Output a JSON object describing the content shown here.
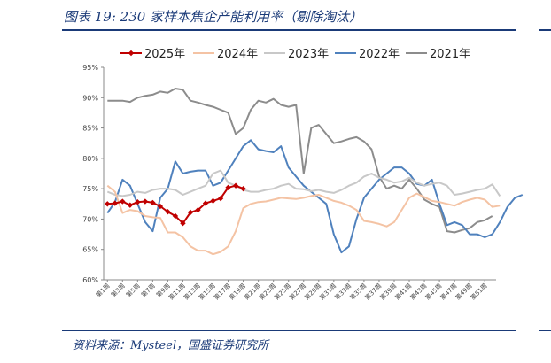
{
  "figure": {
    "title": "图表 19:  230 家样本焦企产能利用率（剔除淘汰）",
    "source": "资料来源：Mysteel，国盛证券研究所"
  },
  "chart_data": {
    "type": "line",
    "title": "",
    "xlabel": "",
    "ylabel": "",
    "ylim": [
      60,
      95
    ],
    "yticks": [
      "60%",
      "65%",
      "70%",
      "75%",
      "80%",
      "85%",
      "90%",
      "95%"
    ],
    "x_ticks": [
      "第1周",
      "第3周",
      "第5周",
      "第7周",
      "第9周",
      "第11周",
      "第13周",
      "第15周",
      "第17周",
      "第19周",
      "第21周",
      "第23周",
      "第25周",
      "第27周",
      "第29周",
      "第31周",
      "第33周",
      "第35周",
      "第37周",
      "第39周",
      "第41周",
      "第43周",
      "第45周",
      "第47周",
      "第49周",
      "第51周"
    ],
    "legend_position": "top",
    "grid": false,
    "series": [
      {
        "name": "2025年",
        "color": "#c00000",
        "marker": "diamond",
        "values": [
          72.5,
          72.6,
          72.9,
          72.3,
          72.8,
          72.9,
          72.7,
          72.1,
          71.2,
          70.5,
          69.3,
          71.1,
          71.5,
          72.6,
          73.0,
          73.4,
          75.2,
          75.5,
          75.0
        ]
      },
      {
        "name": "2024年",
        "color": "#f4c3a4",
        "values": [
          75.5,
          74.5,
          71.0,
          71.5,
          71.3,
          70.5,
          70.3,
          70.2,
          67.8,
          67.8,
          67.0,
          65.5,
          64.8,
          64.8,
          64.2,
          64.6,
          65.5,
          68.0,
          71.8,
          72.5,
          72.8,
          72.9,
          73.2,
          73.5,
          73.4,
          73.3,
          73.5,
          73.8,
          74.0,
          73.5,
          73.0,
          72.7,
          72.2,
          71.5,
          69.7,
          69.5,
          69.2,
          68.8,
          69.5,
          71.5,
          73.5,
          74.2,
          73.6,
          73.0,
          72.8,
          72.5,
          72.2,
          72.8,
          73.2,
          73.5,
          73.2,
          72.0,
          72.2
        ]
      },
      {
        "name": "2023年",
        "color": "#c8c8c8",
        "values": [
          74.5,
          74.0,
          73.8,
          74.0,
          74.5,
          74.3,
          74.8,
          75.0,
          75.0,
          74.8,
          74.0,
          74.5,
          75.0,
          75.5,
          77.5,
          78.0,
          76.0,
          75.5,
          74.8,
          74.5,
          74.5,
          74.8,
          75.0,
          75.5,
          75.8,
          75.0,
          74.9,
          74.6,
          74.8,
          74.5,
          74.3,
          74.8,
          75.5,
          76.0,
          77.0,
          77.5,
          76.8,
          76.5,
          76.0,
          76.2,
          76.8,
          76.0,
          75.5,
          75.8,
          76.0,
          75.5,
          74.0,
          74.2,
          74.5,
          74.8,
          75.0,
          75.7,
          73.8
        ]
      },
      {
        "name": "2022年",
        "color": "#4f81bd",
        "values": [
          71.0,
          72.8,
          76.5,
          75.5,
          72.5,
          69.5,
          68.0,
          73.5,
          75.0,
          79.5,
          77.5,
          77.8,
          78.0,
          78.0,
          75.5,
          76.0,
          78.0,
          80.0,
          82.0,
          83.0,
          81.5,
          81.2,
          81.0,
          82.0,
          78.5,
          77.0,
          75.5,
          74.5,
          73.5,
          72.5,
          67.5,
          64.5,
          65.5,
          70.0,
          73.5,
          75.0,
          76.5,
          77.5,
          78.5,
          78.5,
          77.5,
          75.8,
          75.5,
          76.5,
          72.5,
          69.0,
          69.5,
          69.0,
          67.5,
          67.5,
          67.0,
          67.5,
          69.5,
          72.0,
          73.5,
          74.0
        ]
      },
      {
        "name": "2021年",
        "color": "#8c8c8c",
        "values": [
          89.5,
          89.5,
          89.5,
          89.3,
          90.0,
          90.3,
          90.5,
          91.0,
          90.8,
          91.5,
          91.3,
          89.5,
          89.2,
          88.8,
          88.5,
          88.0,
          87.5,
          84.0,
          85.0,
          88.0,
          89.5,
          89.2,
          89.8,
          88.8,
          88.5,
          88.8,
          77.5,
          85.0,
          85.5,
          84.0,
          82.5,
          82.8,
          83.2,
          83.5,
          82.8,
          81.5,
          77.0,
          75.0,
          75.5,
          75.0,
          76.5,
          75.0,
          73.2,
          72.5,
          72.0,
          68.0,
          67.8,
          68.2,
          68.5,
          69.5,
          69.8,
          70.5
        ]
      }
    ]
  }
}
